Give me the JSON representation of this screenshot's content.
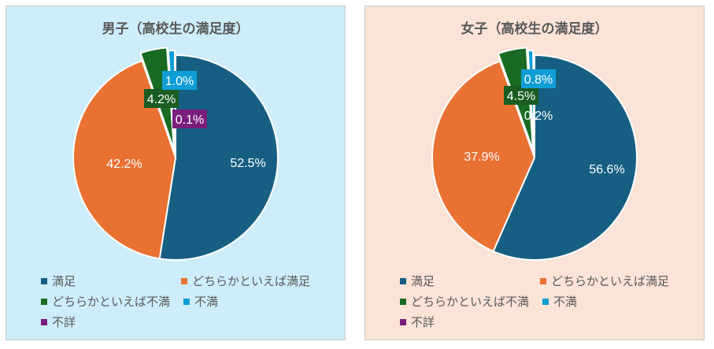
{
  "chart_data": [
    {
      "type": "pie",
      "title": "男子（高校生の満足度）",
      "categories": [
        "満足",
        "どちらかといえば満足",
        "どちらかといえば不満",
        "不満",
        "不詳"
      ],
      "values": [
        52.5,
        42.2,
        4.2,
        1.0,
        0.1
      ],
      "labels": [
        "52.5%",
        "42.2%",
        "4.2%",
        "1.0%",
        "0.1%"
      ],
      "legend_position": "bottom"
    },
    {
      "type": "pie",
      "title": "女子（高校生の満足度）",
      "categories": [
        "満足",
        "どちらかといえば満足",
        "どちらかといえば不満",
        "不満",
        "不詳"
      ],
      "values": [
        56.6,
        37.9,
        4.5,
        0.8,
        0.2
      ],
      "labels": [
        "56.6%",
        "37.9%",
        "4.5%",
        "0.8%",
        "0.2%"
      ],
      "legend_position": "bottom"
    }
  ],
  "colors": [
    "#175f82",
    "#e97132",
    "#196b24",
    "#0f9ed5",
    "#7a1e7d"
  ]
}
